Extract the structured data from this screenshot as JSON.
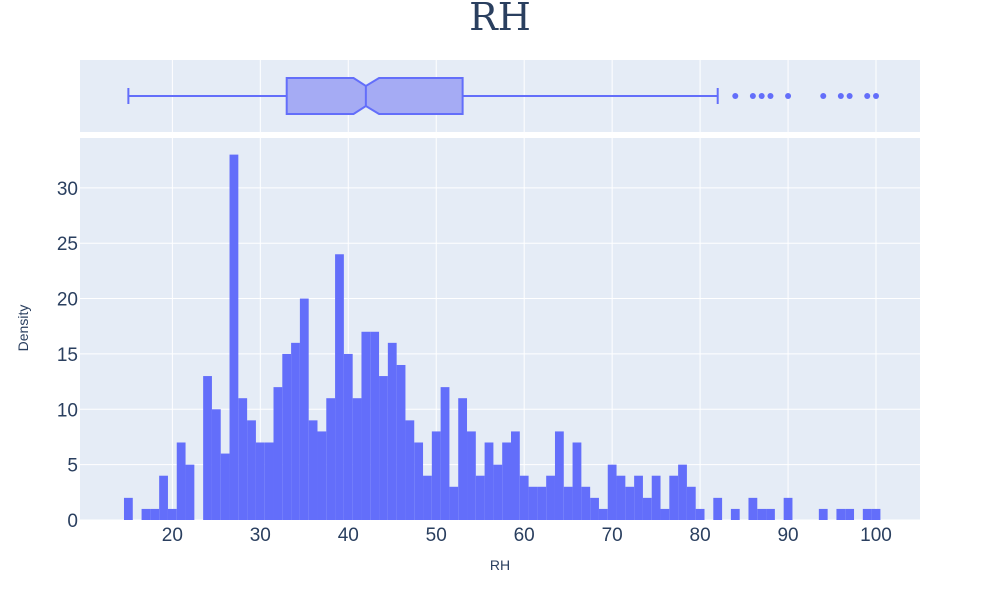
{
  "colors": {
    "bar": "#636efa",
    "box_fill": "#a5abf4",
    "panel_bg": "#e5ecf6",
    "grid": "#ffffff",
    "text": "#2a3f5f"
  },
  "chart_data": [
    {
      "type": "box",
      "orientation": "horizontal",
      "notched": true,
      "min": 15,
      "q1": 33,
      "median": 42,
      "q3": 53,
      "max": 82,
      "notch_low": 40.6,
      "notch_high": 43.5,
      "outliers": [
        84,
        86,
        87,
        88,
        90,
        94,
        96,
        97,
        99,
        100
      ],
      "xlim": [
        9.5,
        105
      ],
      "grid": true
    },
    {
      "type": "bar",
      "title": "RH",
      "xlabel": "RH",
      "ylabel": "Density",
      "bin_width": 1,
      "x": [
        15,
        16,
        17,
        18,
        19,
        20,
        21,
        22,
        23,
        24,
        25,
        26,
        27,
        28,
        29,
        30,
        31,
        32,
        33,
        34,
        35,
        36,
        37,
        38,
        39,
        40,
        41,
        42,
        43,
        44,
        45,
        46,
        47,
        48,
        49,
        50,
        51,
        52,
        53,
        54,
        55,
        56,
        57,
        58,
        59,
        60,
        61,
        62,
        63,
        64,
        65,
        66,
        67,
        68,
        69,
        70,
        71,
        72,
        73,
        74,
        75,
        76,
        77,
        78,
        79,
        80,
        81,
        82,
        83,
        84,
        85,
        86,
        87,
        88,
        89,
        90,
        91,
        92,
        93,
        94,
        95,
        96,
        97,
        98,
        99,
        100
      ],
      "values": [
        2,
        0,
        1,
        1,
        4,
        1,
        7,
        5,
        0,
        13,
        10,
        6,
        33,
        11,
        9,
        7,
        7,
        12,
        15,
        16,
        20,
        9,
        8,
        11,
        24,
        15,
        11,
        17,
        17,
        13,
        16,
        14,
        9,
        7,
        4,
        8,
        12,
        3,
        11,
        8,
        4,
        7,
        5,
        7,
        8,
        4,
        3,
        3,
        4,
        8,
        3,
        7,
        3,
        2,
        1,
        5,
        4,
        3,
        4,
        2,
        4,
        1,
        4,
        5,
        3,
        1,
        0,
        2,
        0,
        1,
        0,
        2,
        1,
        1,
        0,
        2,
        0,
        0,
        0,
        1,
        0,
        1,
        1,
        0,
        1,
        1
      ],
      "xlim": [
        9.5,
        105
      ],
      "ylim": [
        0,
        34.5
      ],
      "x_ticks": [
        20,
        30,
        40,
        50,
        60,
        70,
        80,
        90,
        100
      ],
      "y_ticks": [
        0,
        5,
        10,
        15,
        20,
        25,
        30
      ],
      "grid": true
    }
  ]
}
